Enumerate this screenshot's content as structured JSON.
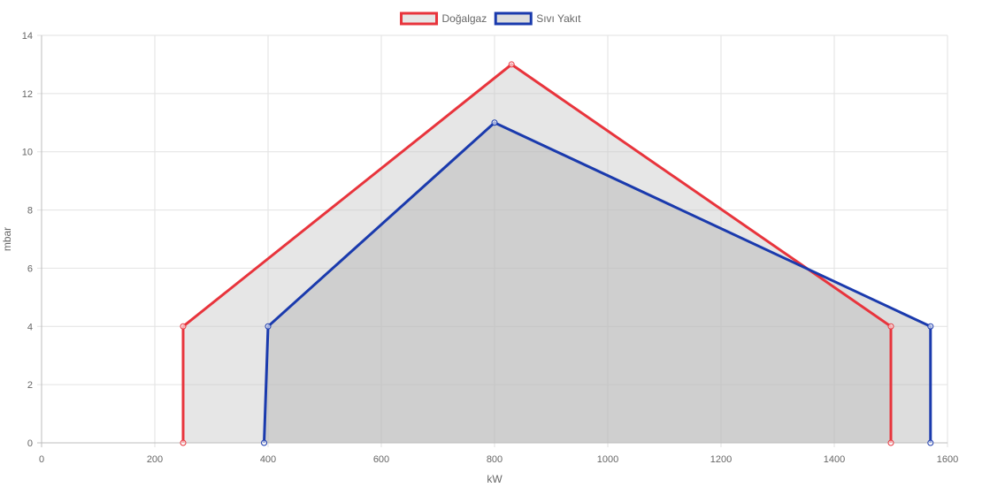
{
  "chart_data": {
    "type": "line",
    "xlabel": "kW",
    "ylabel": "mbar",
    "xlim": [
      0,
      1600
    ],
    "ylim": [
      0,
      14
    ],
    "x_ticks": [
      0,
      200,
      400,
      600,
      800,
      1000,
      1200,
      1400,
      1600
    ],
    "y_ticks": [
      0,
      2,
      4,
      6,
      8,
      10,
      12,
      14
    ],
    "grid": true,
    "legend_position": "top",
    "series": [
      {
        "name": "Doğalgaz",
        "color": "#e8343c",
        "fill": "rgba(200,200,200,0.45)",
        "points": [
          [
            250,
            0
          ],
          [
            250,
            4
          ],
          [
            830,
            13
          ],
          [
            1500,
            4
          ],
          [
            1500,
            0
          ]
        ]
      },
      {
        "name": "Sıvı Yakıt",
        "color": "#1a3aad",
        "fill": "rgba(180,180,180,0.45)",
        "points": [
          [
            393,
            0
          ],
          [
            400,
            4
          ],
          [
            800,
            11
          ],
          [
            1570,
            4
          ],
          [
            1570,
            0
          ]
        ]
      }
    ]
  }
}
